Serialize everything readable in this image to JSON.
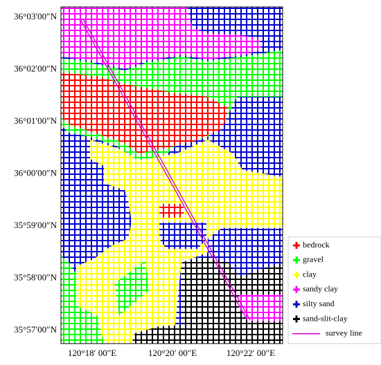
{
  "axes": {
    "y_labels": [
      "36°03′00″N",
      "36°02′00″N",
      "36°01′00″N",
      "36°00′00″N",
      "35°59′00″N",
      "35°58′00″N",
      "35°57′00″N"
    ],
    "x_labels": [
      "120°18′ 00″E",
      "120°20′ 00″E",
      "120°22′ 00″E"
    ]
  },
  "legend": [
    {
      "label": "bedrock",
      "color": "#ff0000"
    },
    {
      "label": "gravel",
      "color": "#00ff00"
    },
    {
      "label": "clay",
      "color": "#ffff00"
    },
    {
      "label": "sandy clay",
      "color": "#ff00ff"
    },
    {
      "label": "silty sand",
      "color": "#0000cc"
    },
    {
      "label": "sand-slit-clay",
      "color": "#000000"
    },
    {
      "label": "survey line",
      "color": "#cc00cc"
    }
  ]
}
